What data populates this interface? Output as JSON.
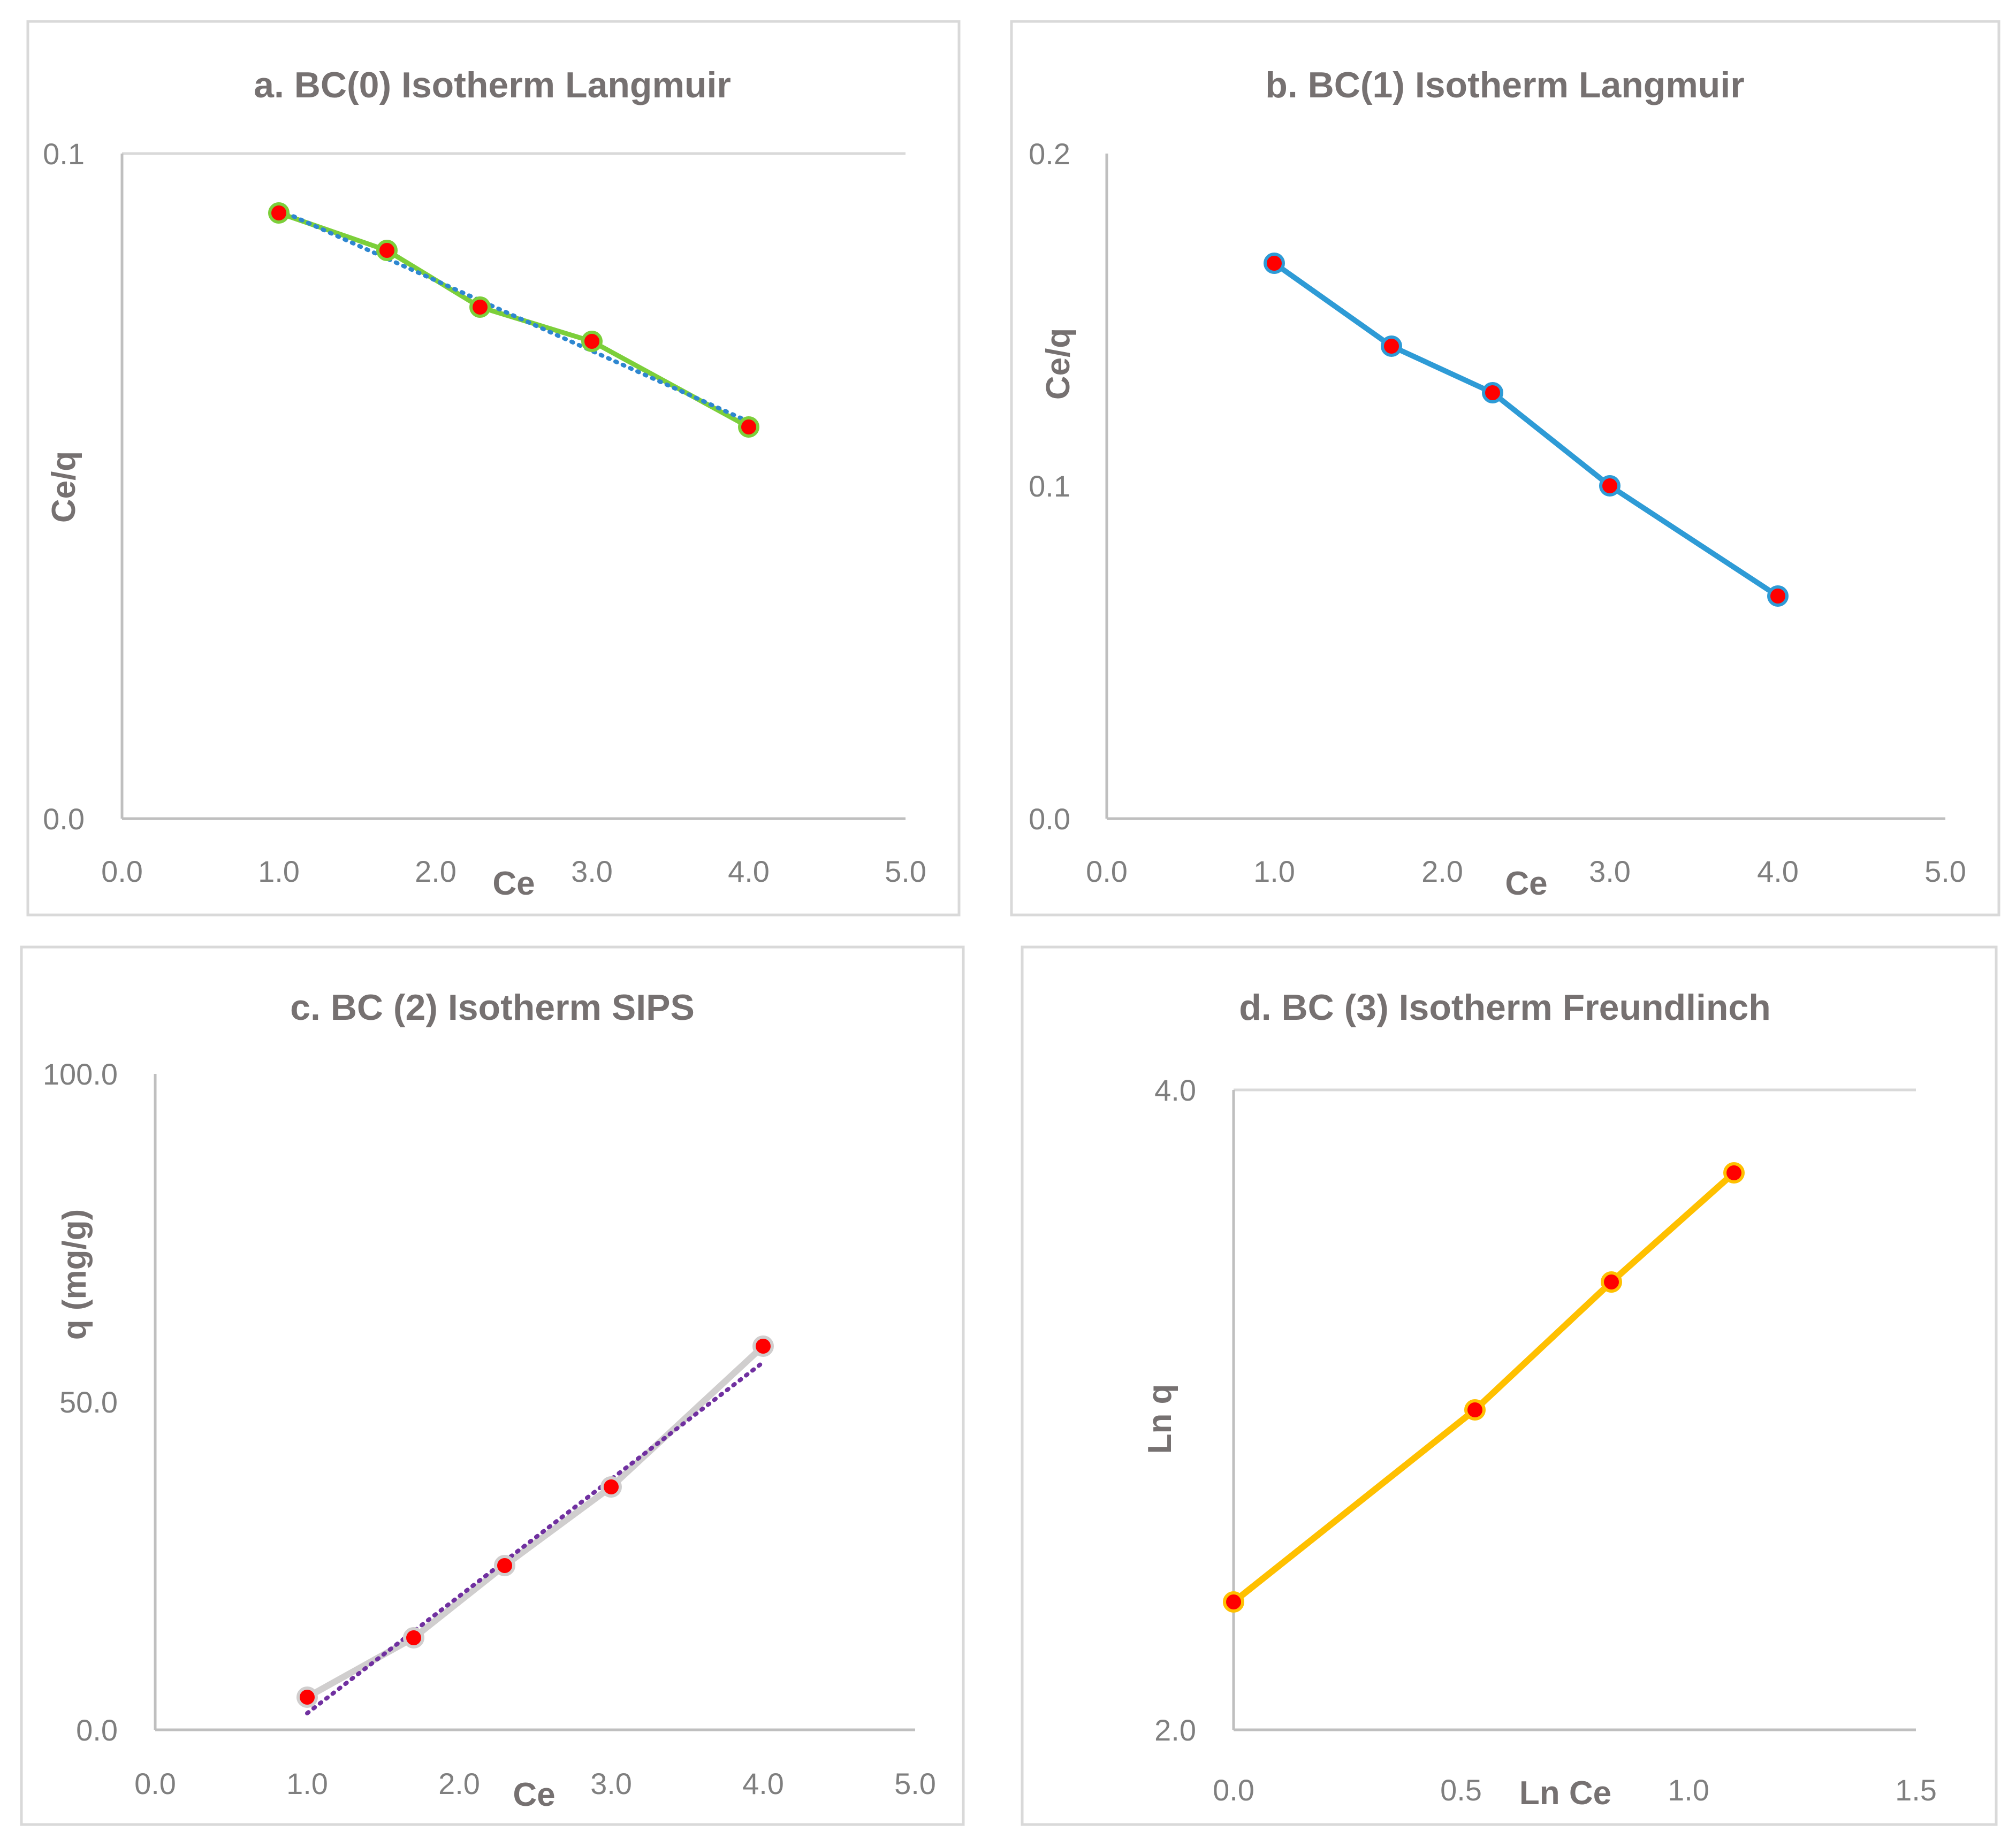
{
  "chart_data": [
    {
      "type": "line",
      "title": "a.  BC(0) Isotherm Langmuir",
      "xlabel": "Ce",
      "ylabel": "Ce/q",
      "xlim": [
        0,
        5
      ],
      "ylim": [
        0,
        0.1
      ],
      "x_ticks": [
        "0.0",
        "1.0",
        "2.0",
        "3.0",
        "4.0",
        "5.0"
      ],
      "y_ticks": [
        "0.0",
        "0.1"
      ],
      "x": [
        1.0,
        1.69,
        2.3,
        3.0,
        4.0
      ],
      "series": [
        {
          "name": "data",
          "values": [
            0.091,
            0.085,
            0.0765,
            0.0715,
            0.0585
          ],
          "color": "#7ccf3a",
          "marker_fill": "#ff0000",
          "marker_edge": "#7ccf3a"
        },
        {
          "name": "trendline",
          "style": "dotted",
          "color": "#2e87d0",
          "x": [
            1.0,
            4.0
          ],
          "values": [
            0.0915,
            0.0595
          ]
        }
      ]
    },
    {
      "type": "line",
      "title": "b. BC(1) Isotherm Langmuir",
      "xlabel": "Ce",
      "ylabel": "Ce/q",
      "xlim": [
        0,
        5
      ],
      "ylim": [
        0,
        0.2
      ],
      "x_ticks": [
        "0.0",
        "1.0",
        "2.0",
        "3.0",
        "4.0",
        "5.0"
      ],
      "y_ticks": [
        "0.0",
        "0.1",
        "0.2"
      ],
      "x": [
        1.0,
        1.7,
        2.3,
        3.0,
        4.0
      ],
      "series": [
        {
          "name": "data",
          "values": [
            0.167,
            0.142,
            0.128,
            0.1,
            0.067
          ],
          "color": "#2e9bd6",
          "marker_fill": "#ff0000",
          "marker_edge": "#2e9bd6"
        }
      ]
    },
    {
      "type": "line",
      "title": "c. BC (2) Isotherm SIPS",
      "xlabel": "Ce",
      "ylabel": "q (mg/g)",
      "xlim": [
        0,
        5
      ],
      "ylim": [
        0,
        100
      ],
      "x_ticks": [
        "0.0",
        "1.0",
        "2.0",
        "3.0",
        "4.0",
        "5.0"
      ],
      "y_ticks": [
        "0.0",
        "50.0",
        "100.0"
      ],
      "x": [
        1.0,
        1.7,
        2.3,
        3.0,
        4.0
      ],
      "series": [
        {
          "name": "data",
          "values": [
            5.0,
            14.0,
            25.0,
            37.0,
            58.5
          ],
          "color": "#d0cece",
          "marker_fill": "#ff0000",
          "marker_edge": "#d0cece"
        },
        {
          "name": "trendline",
          "style": "dotted",
          "color": "#7030a0",
          "x": [
            1.0,
            4.0
          ],
          "values": [
            2.5,
            56.0
          ]
        }
      ]
    },
    {
      "type": "line",
      "title": "d. BC (3) Isotherm Freundlinch",
      "xlabel": "Ln Ce",
      "ylabel": "Ln q",
      "xlim": [
        0,
        1.5
      ],
      "ylim": [
        2,
        4
      ],
      "x_ticks": [
        "0.0",
        "0.5",
        "1.0",
        "1.5"
      ],
      "y_ticks": [
        "2.0",
        "4.0"
      ],
      "x": [
        0.0,
        0.53,
        0.83,
        1.1
      ],
      "series": [
        {
          "name": "data",
          "values": [
            2.4,
            3.0,
            3.4,
            3.74
          ],
          "color": "#ffc000",
          "marker_fill": "#ff0000",
          "marker_edge": "#ffc000"
        }
      ]
    }
  ]
}
